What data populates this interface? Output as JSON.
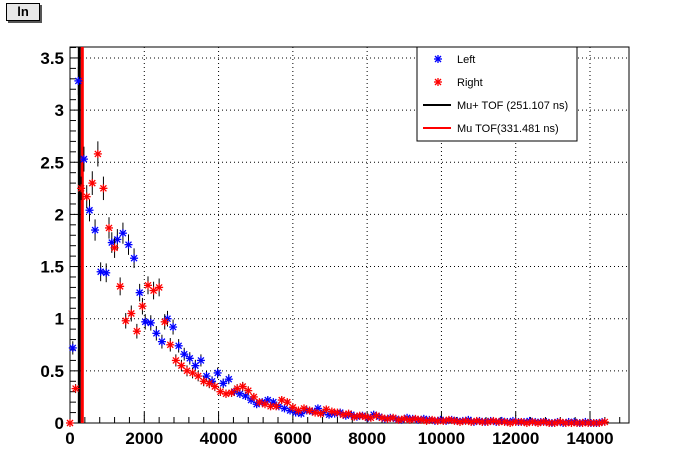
{
  "toolbar": {
    "button_label": "ln"
  },
  "chart_data": {
    "type": "scatter",
    "title": "",
    "xlabel": "",
    "ylabel": "",
    "xlim": [
      0,
      15050
    ],
    "ylim": [
      0,
      3.605
    ],
    "grid": true,
    "legend_position": "top-right",
    "x_ticks": [
      "0",
      "2000",
      "4000",
      "6000",
      "8000",
      "10000",
      "12000",
      "14000"
    ],
    "y_ticks": [
      "0",
      "0.5",
      "1",
      "1.5",
      "2",
      "2.5",
      "3",
      "3.5"
    ],
    "bin_width": 150,
    "error_model": "0.075*sqrt(y)",
    "series": [
      {
        "name": "Left",
        "color": "#0000ff",
        "x_start": 75,
        "values": [
          0.72,
          3.28,
          2.53,
          2.04,
          1.85,
          1.45,
          1.44,
          1.73,
          1.76,
          1.82,
          1.71,
          1.58,
          1.25,
          0.97,
          0.96,
          0.86,
          0.78,
          1.0,
          0.92,
          0.74,
          0.66,
          0.62,
          0.55,
          0.6,
          0.45,
          0.4,
          0.48,
          0.38,
          0.42,
          0.3,
          0.28,
          0.26,
          0.22,
          0.18,
          0.2,
          0.22,
          0.2,
          0.16,
          0.14,
          0.12,
          0.1,
          0.09,
          0.12,
          0.11,
          0.14,
          0.1,
          0.08,
          0.09,
          0.1,
          0.07,
          0.08,
          0.06,
          0.07,
          0.05,
          0.08,
          0.06,
          0.04,
          0.05,
          0.04,
          0.03,
          0.05,
          0.04,
          0.03,
          0.04,
          0.03,
          0.02,
          0.03,
          0.02,
          0.03,
          0.02,
          0.02,
          0.03,
          0.01,
          0.02,
          0.01,
          0.02,
          0.01,
          0.02,
          0.01,
          0.02,
          0.01,
          0.01,
          0.02,
          0.01,
          0.01,
          0.01,
          0.0,
          0.01,
          0.0,
          0.01,
          0.01,
          0.0,
          0.01,
          0.0,
          0.0,
          0.01
        ]
      },
      {
        "name": "Right",
        "color": "#ff0000",
        "x_start": 0,
        "values": [
          0.0,
          0.33,
          2.25,
          2.17,
          2.3,
          2.58,
          2.25,
          1.87,
          1.68,
          1.31,
          0.98,
          1.05,
          0.88,
          1.12,
          1.32,
          1.27,
          1.3,
          0.97,
          0.75,
          0.6,
          0.55,
          0.5,
          0.48,
          0.45,
          0.4,
          0.38,
          0.35,
          0.3,
          0.28,
          0.29,
          0.33,
          0.35,
          0.31,
          0.25,
          0.2,
          0.18,
          0.16,
          0.16,
          0.22,
          0.2,
          0.15,
          0.12,
          0.14,
          0.12,
          0.1,
          0.09,
          0.13,
          0.11,
          0.1,
          0.08,
          0.09,
          0.06,
          0.07,
          0.06,
          0.05,
          0.07,
          0.05,
          0.04,
          0.05,
          0.03,
          0.04,
          0.03,
          0.04,
          0.03,
          0.02,
          0.03,
          0.02,
          0.02,
          0.03,
          0.02,
          0.01,
          0.02,
          0.01,
          0.02,
          0.01,
          0.01,
          0.02,
          0.01,
          0.01,
          0.0,
          0.01,
          0.01,
          0.0,
          0.01,
          0.0,
          0.01,
          0.0,
          0.0,
          0.01,
          0.0,
          0.0,
          0.0,
          0.0,
          0.0,
          0.0,
          0.0,
          0.01
        ]
      }
    ],
    "lines": [
      {
        "name": "Mu+ TOF (251.107 ns)",
        "x": 251.107,
        "color": "#000000"
      },
      {
        "name": "Mu  TOF(331.481 ns)",
        "x": 331.481,
        "color": "#ff0000"
      }
    ]
  }
}
